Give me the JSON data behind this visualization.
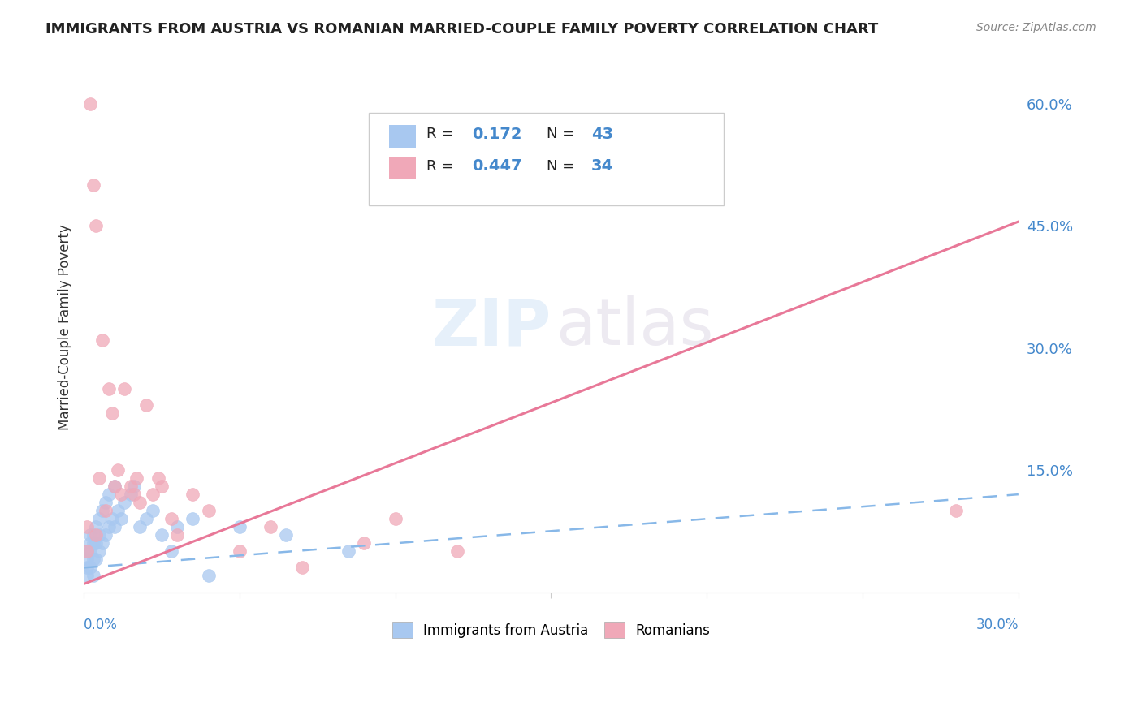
{
  "title": "IMMIGRANTS FROM AUSTRIA VS ROMANIAN MARRIED-COUPLE FAMILY POVERTY CORRELATION CHART",
  "source": "Source: ZipAtlas.com",
  "ylabel": "Married-Couple Family Poverty",
  "xlim": [
    0.0,
    0.3
  ],
  "ylim": [
    0.0,
    0.65
  ],
  "austria_R": 0.172,
  "austria_N": 43,
  "romanian_R": 0.447,
  "romanian_N": 34,
  "austria_color": "#a8c8f0",
  "romanian_color": "#f0a8b8",
  "austria_trend_color": "#88b8e8",
  "romanian_trend_color": "#e87898",
  "background_color": "#ffffff",
  "grid_color": "#dddddd",
  "austria_points_x": [
    0.001,
    0.001,
    0.001,
    0.001,
    0.002,
    0.002,
    0.002,
    0.002,
    0.003,
    0.003,
    0.003,
    0.003,
    0.004,
    0.004,
    0.004,
    0.005,
    0.005,
    0.005,
    0.006,
    0.006,
    0.007,
    0.007,
    0.008,
    0.008,
    0.009,
    0.01,
    0.01,
    0.011,
    0.012,
    0.013,
    0.015,
    0.016,
    0.018,
    0.02,
    0.022,
    0.025,
    0.028,
    0.03,
    0.035,
    0.04,
    0.05,
    0.065,
    0.085
  ],
  "austria_points_y": [
    0.02,
    0.03,
    0.04,
    0.05,
    0.03,
    0.05,
    0.06,
    0.07,
    0.02,
    0.04,
    0.06,
    0.07,
    0.04,
    0.06,
    0.08,
    0.05,
    0.07,
    0.09,
    0.06,
    0.1,
    0.07,
    0.11,
    0.08,
    0.12,
    0.09,
    0.08,
    0.13,
    0.1,
    0.09,
    0.11,
    0.12,
    0.13,
    0.08,
    0.09,
    0.1,
    0.07,
    0.05,
    0.08,
    0.09,
    0.02,
    0.08,
    0.07,
    0.05
  ],
  "romanian_points_x": [
    0.001,
    0.001,
    0.002,
    0.003,
    0.004,
    0.004,
    0.005,
    0.006,
    0.007,
    0.008,
    0.009,
    0.01,
    0.011,
    0.012,
    0.013,
    0.015,
    0.016,
    0.017,
    0.018,
    0.02,
    0.022,
    0.024,
    0.025,
    0.028,
    0.03,
    0.035,
    0.04,
    0.05,
    0.06,
    0.07,
    0.09,
    0.1,
    0.12,
    0.28
  ],
  "romanian_points_y": [
    0.05,
    0.08,
    0.6,
    0.5,
    0.07,
    0.45,
    0.14,
    0.31,
    0.1,
    0.25,
    0.22,
    0.13,
    0.15,
    0.12,
    0.25,
    0.13,
    0.12,
    0.14,
    0.11,
    0.23,
    0.12,
    0.14,
    0.13,
    0.09,
    0.07,
    0.12,
    0.1,
    0.05,
    0.08,
    0.03,
    0.06,
    0.09,
    0.05,
    0.1
  ],
  "austria_trend_x": [
    0.0,
    0.3
  ],
  "austria_trend_y": [
    0.03,
    0.12
  ],
  "romanian_trend_x": [
    0.0,
    0.3
  ],
  "romanian_trend_y": [
    0.01,
    0.455
  ]
}
